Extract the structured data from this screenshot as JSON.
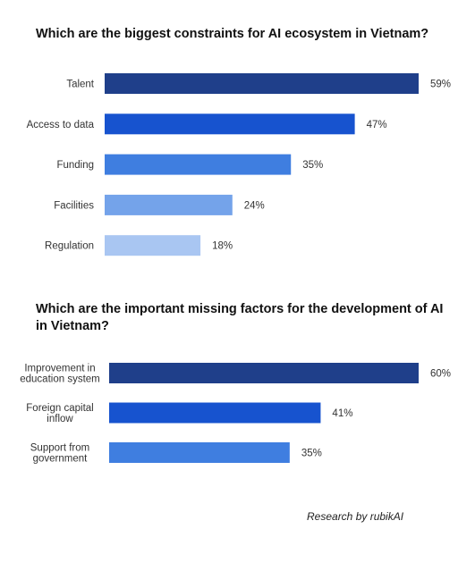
{
  "chart_data": [
    {
      "type": "bar",
      "orientation": "horizontal",
      "title": "Which are the biggest constraints for AI ecosystem in Vietnam?",
      "categories": [
        "Talent",
        "Access to data",
        "Funding",
        "Facilities",
        "Regulation"
      ],
      "values": [
        59,
        47,
        35,
        24,
        18
      ],
      "value_suffix": "%",
      "colors": [
        "#1f3f8a",
        "#1753cf",
        "#3f7ee0",
        "#74a3ea",
        "#a9c6f2"
      ],
      "xlim": [
        0,
        59
      ],
      "grid": false,
      "legend": "none"
    },
    {
      "type": "bar",
      "orientation": "horizontal",
      "title": "Which are the important missing factors for the development of AI in Vietnam?",
      "categories": [
        [
          "Improvement in",
          "education system"
        ],
        [
          "Foreign capital",
          "inflow"
        ],
        [
          "Support from",
          "government"
        ]
      ],
      "values": [
        60,
        41,
        35
      ],
      "value_suffix": "%",
      "colors": [
        "#1f3f8a",
        "#1753cf",
        "#3f7ee0"
      ],
      "xlim": [
        0,
        60
      ],
      "grid": false,
      "legend": "none"
    }
  ],
  "footer": "Research by rubikAI"
}
